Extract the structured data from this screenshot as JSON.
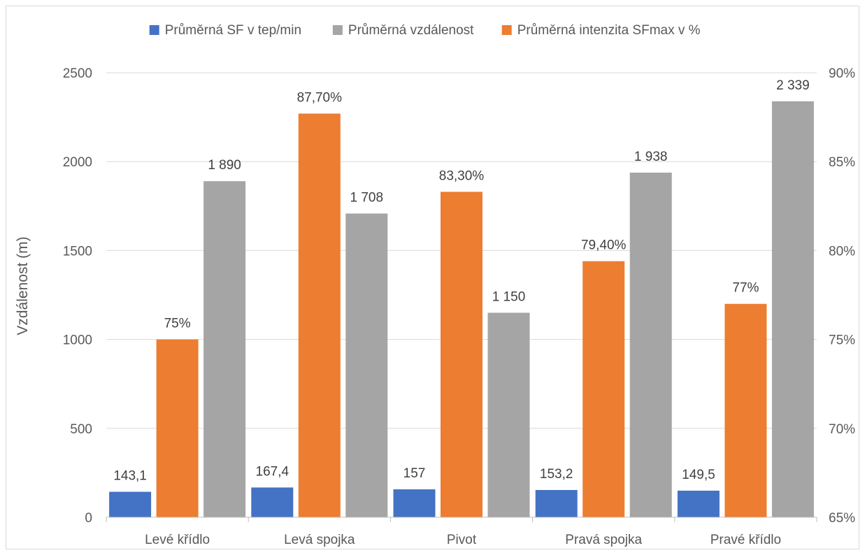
{
  "chart_data": {
    "type": "bar",
    "categories": [
      "Levé křídlo",
      "Levá spojka",
      "Pivot",
      "Pravá spojka",
      "Pravé křídlo"
    ],
    "series": [
      {
        "name": "Průměrná SF v tep/min",
        "axis": "left",
        "color": "#4472c4",
        "values": [
          143.1,
          167.4,
          157,
          153.2,
          149.5
        ],
        "labels": [
          "143,1",
          "167,4",
          "157",
          "153,2",
          "149,5"
        ]
      },
      {
        "name": "Průměrná intenzita SFmax v %",
        "axis": "right",
        "color": "#ed7d31",
        "values": [
          75,
          87.7,
          83.3,
          79.4,
          77
        ],
        "labels": [
          "75%",
          "87,70%",
          "83,30%",
          "79,40%",
          "77%"
        ]
      },
      {
        "name": "Průměrná vzdálenost",
        "axis": "left",
        "color": "#a5a5a5",
        "values": [
          1890,
          1708,
          1150,
          1938,
          2339
        ],
        "labels": [
          "1 890",
          "1 708",
          "1 150",
          "1 938",
          "2 339"
        ]
      }
    ],
    "legend_order": [
      0,
      2,
      1
    ],
    "legend_position": "top",
    "ylabel": "Vzdálenost (m)",
    "ylim": [
      0,
      2500
    ],
    "y_ticks": [
      "0",
      "500",
      "1000",
      "1500",
      "2000",
      "2500"
    ],
    "y2lim": [
      65,
      90
    ],
    "y2_ticks": [
      "65%",
      "70%",
      "75%",
      "80%",
      "85%",
      "90%"
    ],
    "grid": true
  }
}
